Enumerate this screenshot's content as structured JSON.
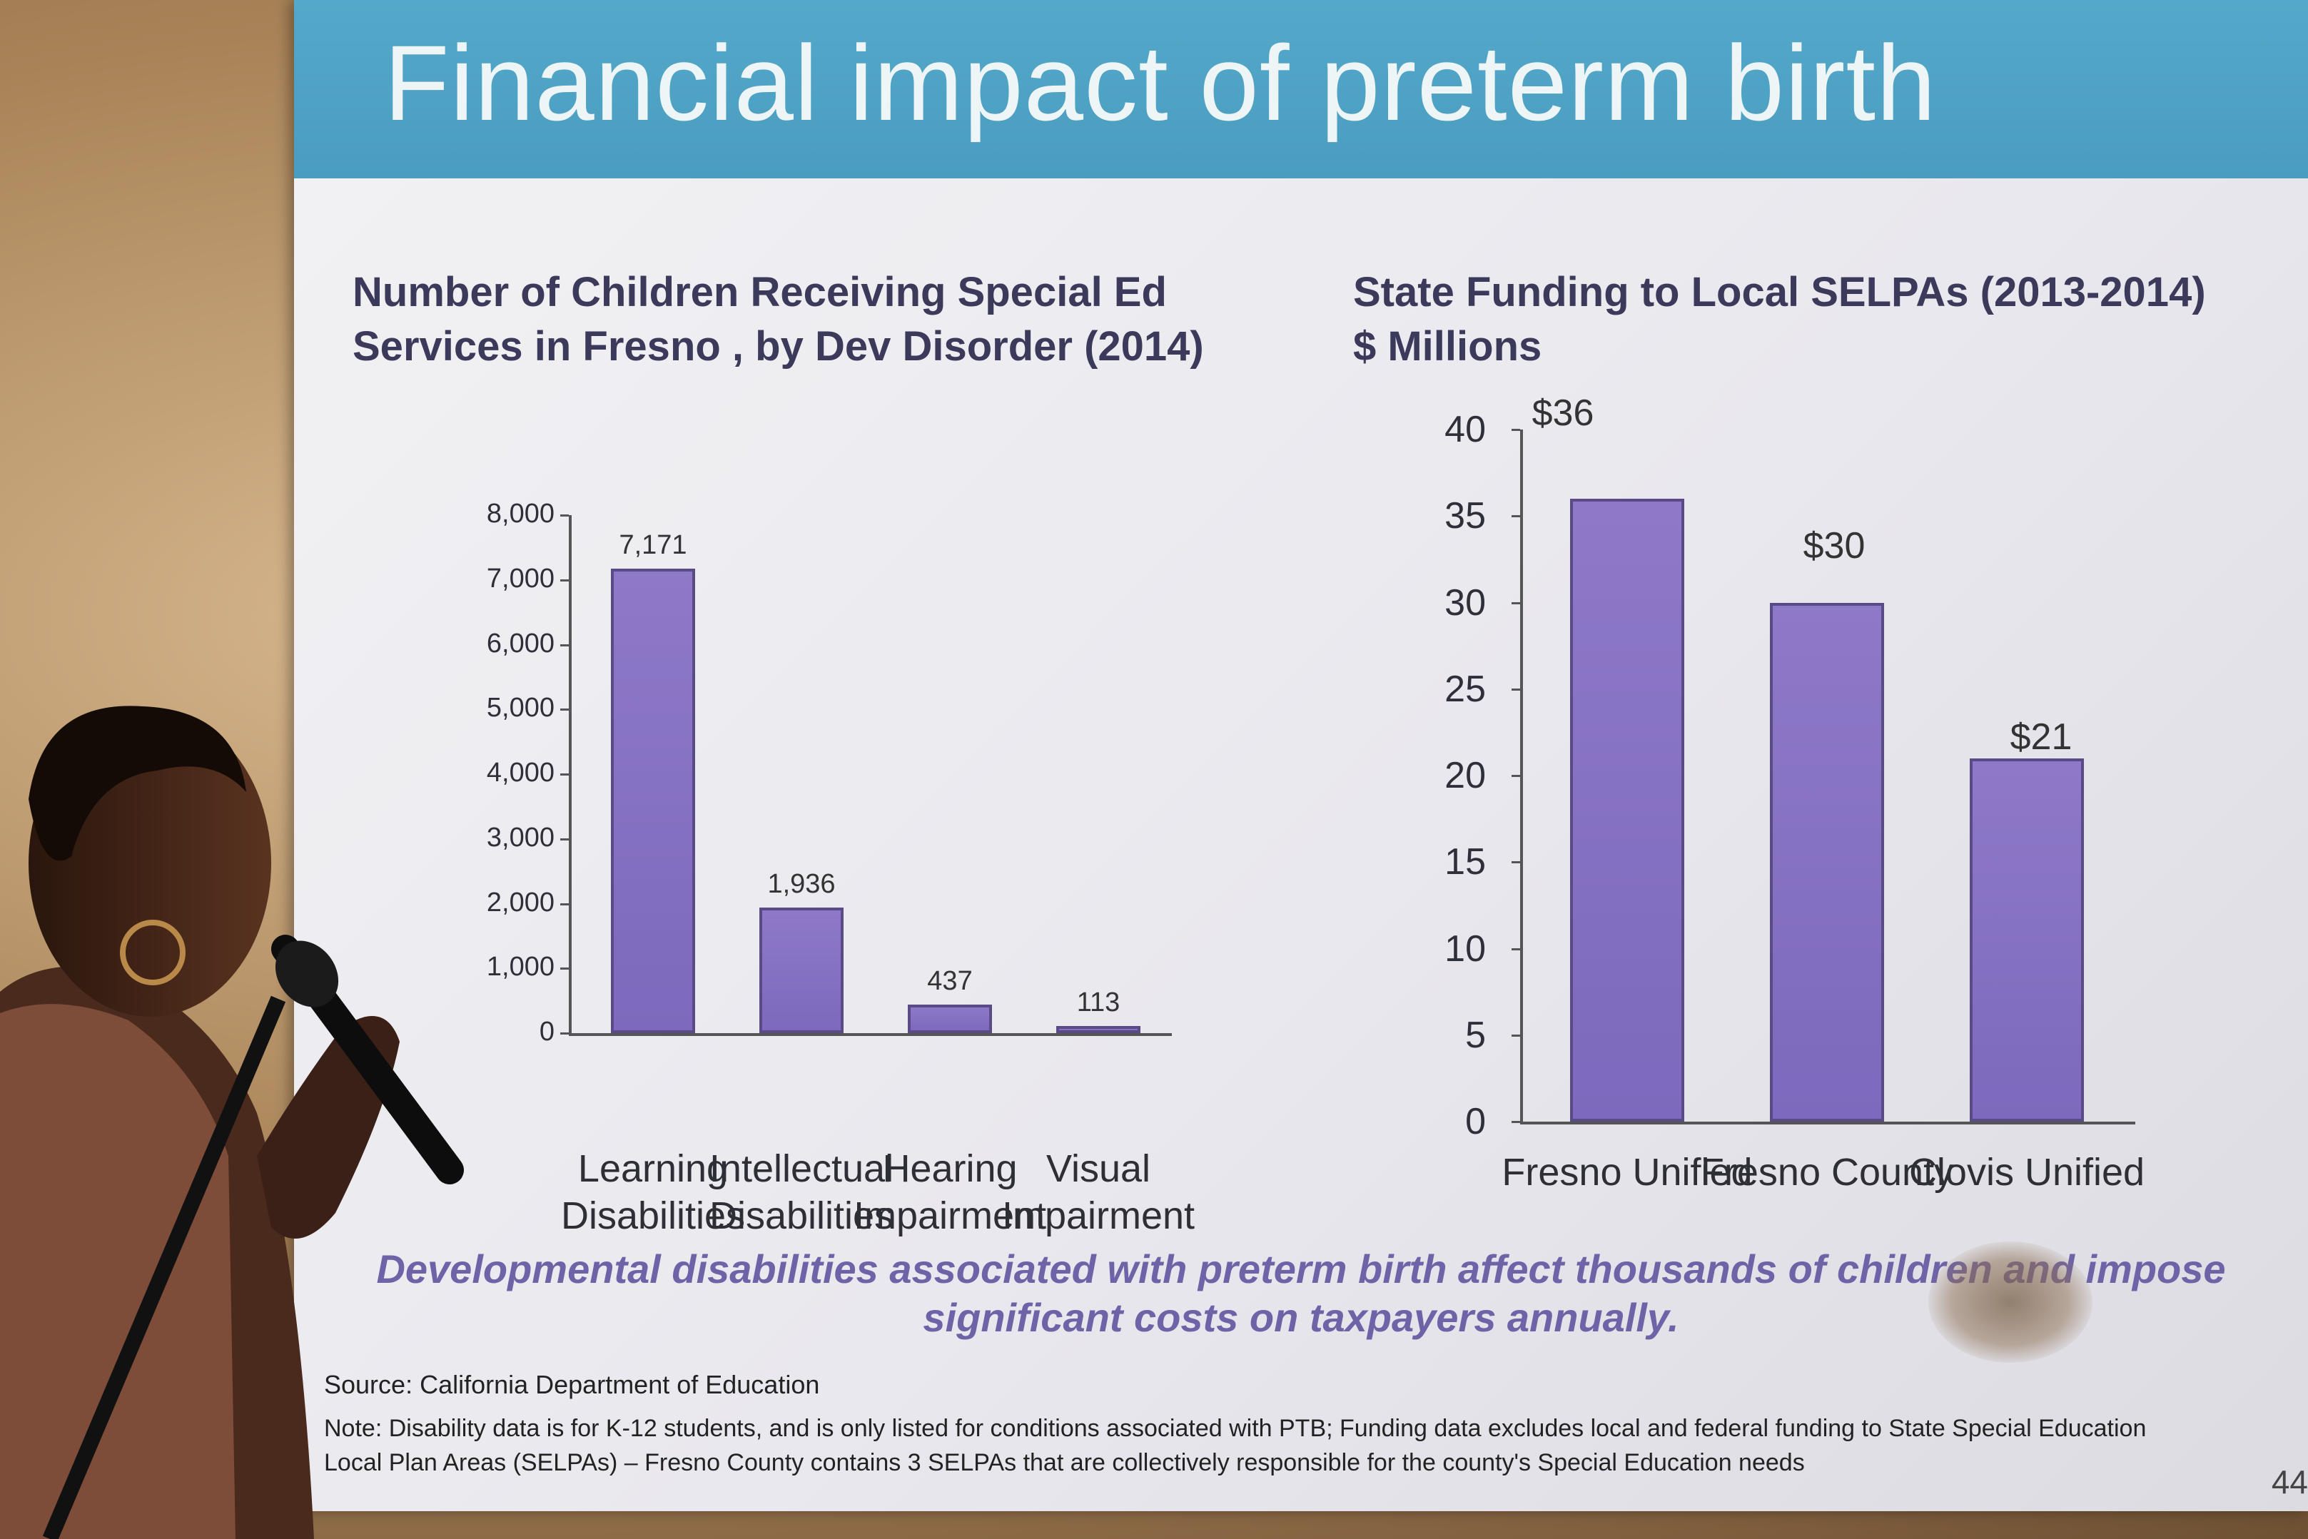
{
  "slide": {
    "title": "Financial impact of preterm birth",
    "takeaway_line1": "Developmental disabilities associated with preterm birth affect thousands of children and impose",
    "takeaway_line2": "significant costs on taxpayers annually.",
    "source": "Source: California Department of Education",
    "note": "Note:  Disability data is for K-12 students, and is only listed for conditions associated with PTB; Funding data excludes local and federal funding to State Special Education Local Plan Areas (SELPAs) – Fresno County contains 3 SELPAs that are collectively responsible for the county's Special Education needs",
    "page_number": "44",
    "colors": {
      "banner": "#54a8c9",
      "bar": "#8e79c8",
      "takeaway": "#6f63a8"
    }
  },
  "chart_data": [
    {
      "type": "bar",
      "title_line1": "Number of Children Receiving Special Ed",
      "title_line2": "Services in Fresno , by Dev Disorder (2014)",
      "categories": [
        [
          "Learning",
          "Disabilities"
        ],
        [
          "Intellectual",
          "Disabilities"
        ],
        [
          "Hearing",
          "Impairment"
        ],
        [
          "Visual",
          "Impairment"
        ]
      ],
      "values": [
        7171,
        1936,
        437,
        113
      ],
      "value_labels": [
        "7,171",
        "1,936",
        "437",
        "113"
      ],
      "yticks": [
        "0",
        "1,000",
        "2,000",
        "3,000",
        "4,000",
        "5,000",
        "6,000",
        "7,000",
        "8,000"
      ],
      "ylim": [
        0,
        8000
      ]
    },
    {
      "type": "bar",
      "title_line1": "State Funding to Local SELPAs (2013-2014)",
      "title_line2": "$ Millions",
      "categories": [
        "Fresno Unified",
        "Fresno County",
        "Clovis Unified"
      ],
      "values": [
        36,
        30,
        21
      ],
      "value_labels": [
        "$36",
        "$30",
        "$21"
      ],
      "yticks": [
        "0",
        "5",
        "10",
        "15",
        "20",
        "25",
        "30",
        "35",
        "40"
      ],
      "ylim": [
        0,
        40
      ]
    }
  ]
}
